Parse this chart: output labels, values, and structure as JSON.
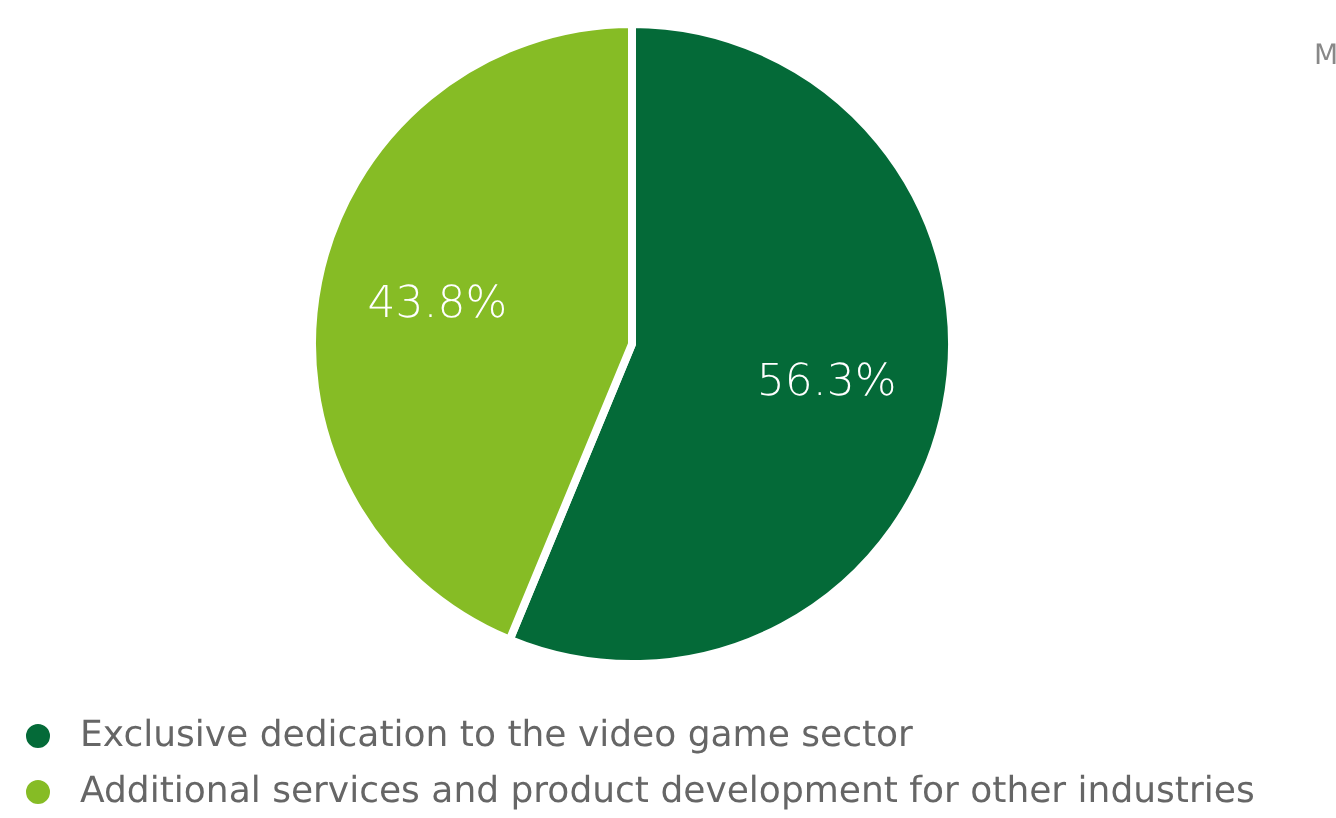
{
  "chart_data": {
    "type": "pie",
    "categories": [
      "Exclusive dedication to the video game sector",
      "Additional services and product development for other industries"
    ],
    "values": [
      56.3,
      43.8
    ],
    "colors": [
      "#046a38",
      "#86bc25"
    ],
    "value_labels": [
      "56.3%",
      "43.8%"
    ],
    "legend": "bottom left",
    "annotations": [
      "M"
    ]
  }
}
